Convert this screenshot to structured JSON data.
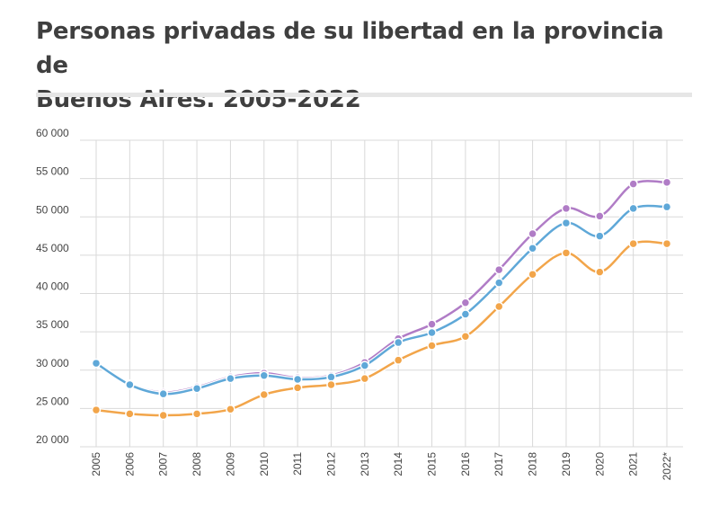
{
  "title_line1": "Personas privadas de su libertad en la provincia de",
  "title_line2": "Buenos Aires. 2005-2022",
  "chart_data": {
    "type": "line",
    "title": "Personas privadas de su libertad en la provincia de Buenos Aires. 2005-2022",
    "xlabel": "",
    "ylabel": "",
    "categories": [
      "2005",
      "2006",
      "2007",
      "2008",
      "2009",
      "2010",
      "2011",
      "2012",
      "2013",
      "2014",
      "2015",
      "2016",
      "2017",
      "2018",
      "2019",
      "2020",
      "2021",
      "2022*"
    ],
    "ylim": [
      20000,
      60000
    ],
    "yticks": [
      20000,
      25000,
      30000,
      35000,
      40000,
      45000,
      50000,
      55000,
      60000
    ],
    "ytick_labels": [
      "20 000",
      "25 000",
      "30 000",
      "35 000",
      "40 000",
      "45 000",
      "50 000",
      "55 000",
      "60 000"
    ],
    "grid": true,
    "legend": "none",
    "series": [
      {
        "color": "#b07cc6",
        "values": [
          30900,
          28200,
          27100,
          27800,
          29100,
          29600,
          29000,
          29300,
          31000,
          34100,
          36000,
          38800,
          43100,
          47800,
          51100,
          50100,
          54300,
          54500
        ]
      },
      {
        "color": "#5fa8d8",
        "values": [
          30900,
          28100,
          26900,
          27600,
          28900,
          29300,
          28800,
          29100,
          30600,
          33600,
          34900,
          37300,
          41400,
          45900,
          49200,
          47500,
          51100,
          51300
        ]
      },
      {
        "color": "#f2a54a",
        "values": [
          24800,
          24300,
          24100,
          24300,
          24900,
          26800,
          27700,
          28100,
          28900,
          31300,
          33200,
          34400,
          38300,
          42500,
          45300,
          42800,
          46500,
          46500
        ]
      }
    ]
  }
}
